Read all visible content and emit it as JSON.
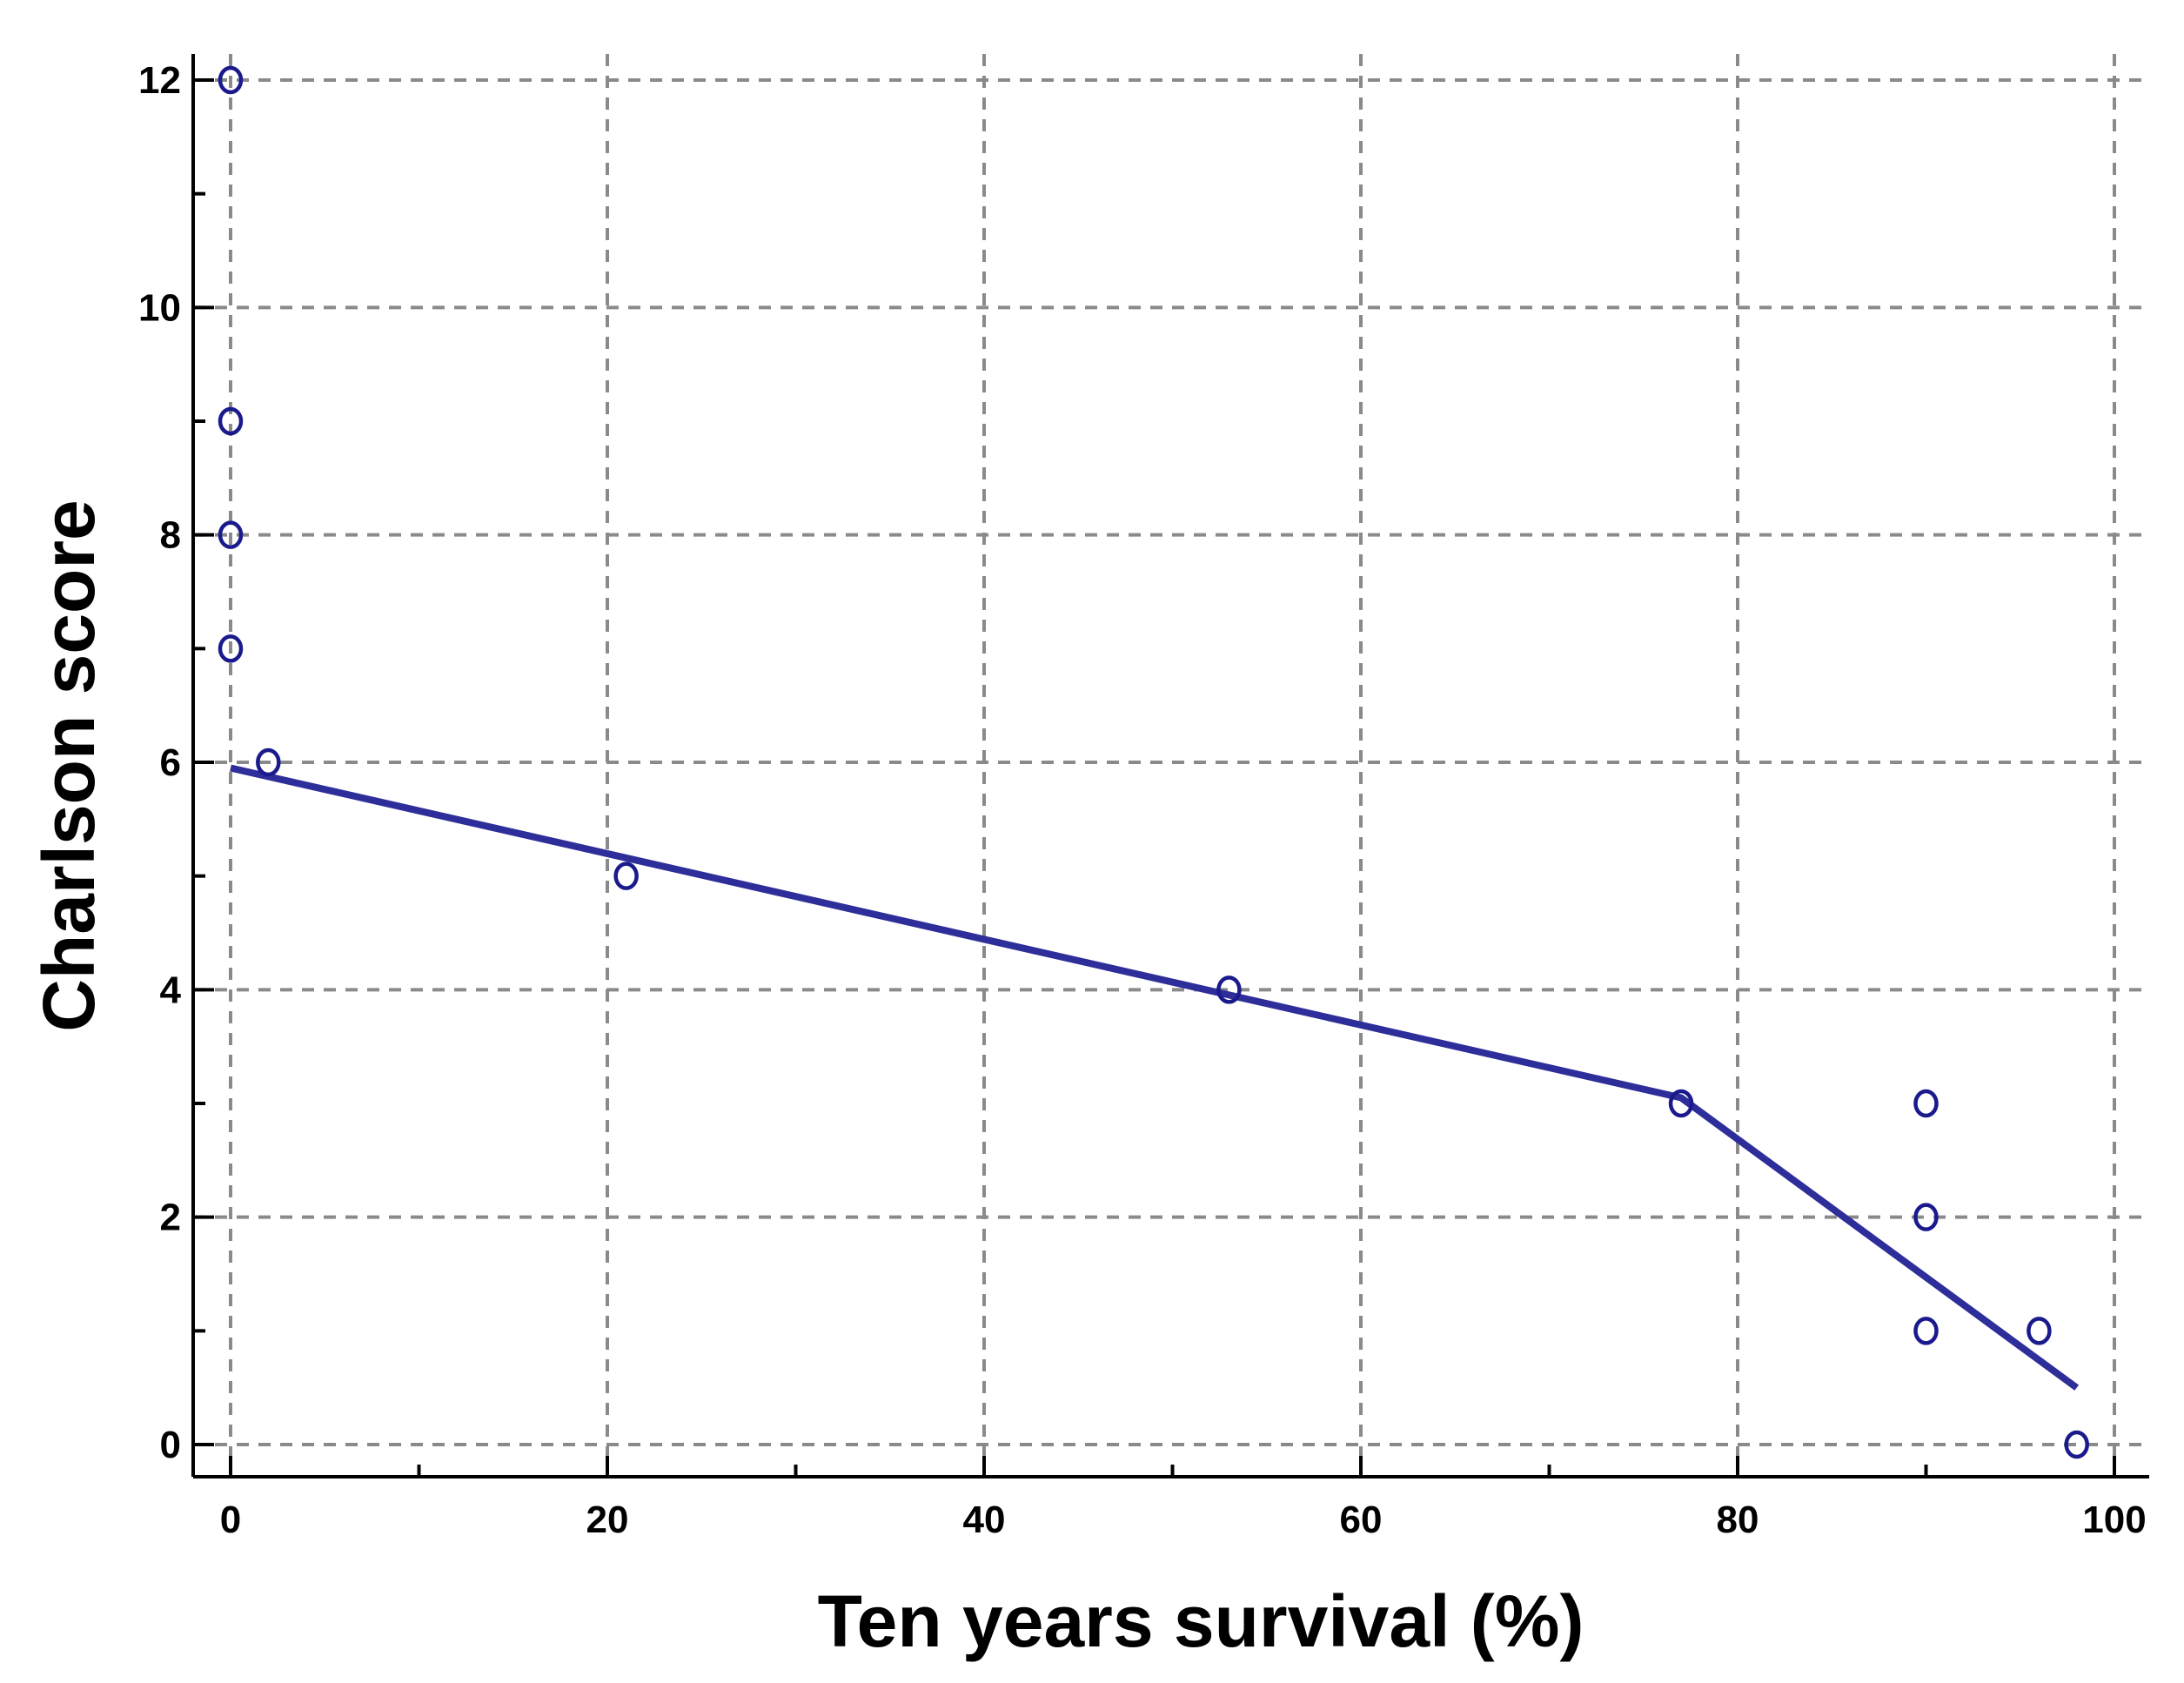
{
  "chart_data": {
    "type": "scatter",
    "title": "",
    "xlabel": "Ten years survival (%)",
    "ylabel": "Charlson score",
    "xlim": [
      0,
      100
    ],
    "ylim": [
      0,
      12
    ],
    "x_ticks": [
      0,
      20,
      40,
      60,
      80,
      100
    ],
    "x_minor_ticks": [
      10,
      30,
      50,
      70,
      90
    ],
    "y_ticks": [
      0,
      2,
      4,
      6,
      8,
      10,
      12
    ],
    "y_minor_ticks": [
      1,
      3,
      5,
      7,
      9,
      11
    ],
    "grid": true,
    "legend": "none",
    "points": [
      {
        "x": 0,
        "y": 12
      },
      {
        "x": 0,
        "y": 9
      },
      {
        "x": 0,
        "y": 8
      },
      {
        "x": 0,
        "y": 7
      },
      {
        "x": 2,
        "y": 6
      },
      {
        "x": 21,
        "y": 5
      },
      {
        "x": 53,
        "y": 4
      },
      {
        "x": 77,
        "y": 3
      },
      {
        "x": 90,
        "y": 3
      },
      {
        "x": 90,
        "y": 2
      },
      {
        "x": 90,
        "y": 1
      },
      {
        "x": 96,
        "y": 1
      },
      {
        "x": 98,
        "y": 0
      }
    ],
    "fit_line": [
      {
        "x": 0,
        "y": 5.95
      },
      {
        "x": 77,
        "y": 3.05
      },
      {
        "x": 98,
        "y": 0.5
      }
    ],
    "colors": {
      "points": "#1a1a8c",
      "fit_line": "#2e2e9a",
      "grid": "#8a8a8a",
      "axis": "#000000"
    }
  }
}
